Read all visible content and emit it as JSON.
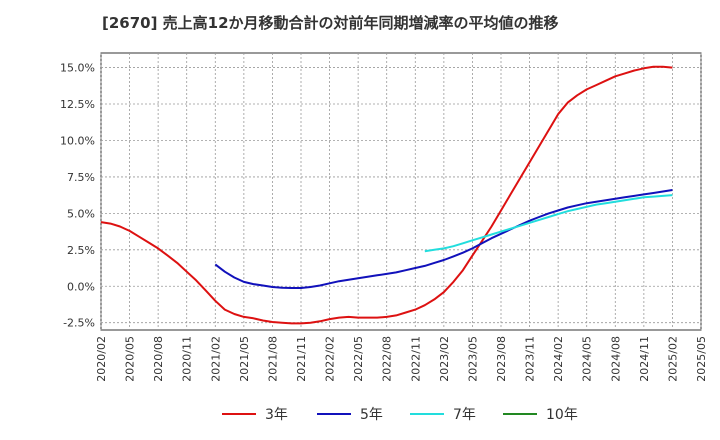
{
  "chart_data": {
    "type": "line",
    "title": "[2670]  売上高12か月移動合計の対前年同期増減率の平均値の推移",
    "xlabel": "",
    "ylabel": "",
    "ylim": [
      -3.0,
      16.0
    ],
    "y_ticks": [
      "15.0%",
      "12.5%",
      "10.0%",
      "7.5%",
      "5.0%",
      "2.5%",
      "0.0%",
      "-2.5%"
    ],
    "y_tick_values": [
      15.0,
      12.5,
      10.0,
      7.5,
      5.0,
      2.5,
      0.0,
      -2.5
    ],
    "x_ticks": [
      "2020/02",
      "2020/05",
      "2020/08",
      "2020/11",
      "2021/02",
      "2021/05",
      "2021/08",
      "2021/11",
      "2022/02",
      "2022/05",
      "2022/08",
      "2022/11",
      "2023/02",
      "2023/05",
      "2023/08",
      "2023/11",
      "2024/02",
      "2024/05",
      "2024/08",
      "2024/11",
      "2025/02",
      "2025/05"
    ],
    "grid": true,
    "legend_position": "bottom",
    "series": [
      {
        "name": "3年",
        "color": "#dd1111",
        "points": [
          [
            "2020/02",
            4.4
          ],
          [
            "2020/03",
            4.3
          ],
          [
            "2020/04",
            4.1
          ],
          [
            "2020/05",
            3.8
          ],
          [
            "2020/06",
            3.4
          ],
          [
            "2020/07",
            3.0
          ],
          [
            "2020/08",
            2.6
          ],
          [
            "2020/09",
            2.1
          ],
          [
            "2020/10",
            1.6
          ],
          [
            "2020/11",
            1.0
          ],
          [
            "2020/12",
            0.4
          ],
          [
            "2021/01",
            -0.3
          ],
          [
            "2021/02",
            -1.0
          ],
          [
            "2021/03",
            -1.6
          ],
          [
            "2021/04",
            -1.9
          ],
          [
            "2021/05",
            -2.1
          ],
          [
            "2021/06",
            -2.2
          ],
          [
            "2021/07",
            -2.35
          ],
          [
            "2021/08",
            -2.45
          ],
          [
            "2021/09",
            -2.5
          ],
          [
            "2021/10",
            -2.55
          ],
          [
            "2021/11",
            -2.55
          ],
          [
            "2021/12",
            -2.5
          ],
          [
            "2022/01",
            -2.4
          ],
          [
            "2022/02",
            -2.25
          ],
          [
            "2022/03",
            -2.15
          ],
          [
            "2022/04",
            -2.1
          ],
          [
            "2022/05",
            -2.15
          ],
          [
            "2022/06",
            -2.15
          ],
          [
            "2022/07",
            -2.15
          ],
          [
            "2022/08",
            -2.1
          ],
          [
            "2022/09",
            -2.0
          ],
          [
            "2022/10",
            -1.8
          ],
          [
            "2022/11",
            -1.6
          ],
          [
            "2022/12",
            -1.3
          ],
          [
            "2023/01",
            -0.9
          ],
          [
            "2023/02",
            -0.4
          ],
          [
            "2023/03",
            0.3
          ],
          [
            "2023/04",
            1.1
          ],
          [
            "2023/05",
            2.1
          ],
          [
            "2023/06",
            3.1
          ],
          [
            "2023/07",
            4.1
          ],
          [
            "2023/08",
            5.2
          ],
          [
            "2023/09",
            6.3
          ],
          [
            "2023/10",
            7.4
          ],
          [
            "2023/11",
            8.5
          ],
          [
            "2023/12",
            9.6
          ],
          [
            "2024/01",
            10.7
          ],
          [
            "2024/02",
            11.8
          ],
          [
            "2024/03",
            12.6
          ],
          [
            "2024/04",
            13.1
          ],
          [
            "2024/05",
            13.5
          ],
          [
            "2024/06",
            13.8
          ],
          [
            "2024/07",
            14.1
          ],
          [
            "2024/08",
            14.4
          ],
          [
            "2024/09",
            14.6
          ],
          [
            "2024/10",
            14.8
          ],
          [
            "2024/11",
            14.95
          ],
          [
            "2024/12",
            15.05
          ],
          [
            "2025/01",
            15.05
          ],
          [
            "2025/02",
            15.0
          ]
        ]
      },
      {
        "name": "5年",
        "color": "#1111bb",
        "points": [
          [
            "2021/02",
            1.5
          ],
          [
            "2021/03",
            1.0
          ],
          [
            "2021/04",
            0.6
          ],
          [
            "2021/05",
            0.3
          ],
          [
            "2021/06",
            0.15
          ],
          [
            "2021/07",
            0.05
          ],
          [
            "2021/08",
            -0.05
          ],
          [
            "2021/09",
            -0.1
          ],
          [
            "2021/10",
            -0.12
          ],
          [
            "2021/11",
            -0.12
          ],
          [
            "2021/12",
            -0.05
          ],
          [
            "2022/01",
            0.05
          ],
          [
            "2022/02",
            0.2
          ],
          [
            "2022/03",
            0.35
          ],
          [
            "2022/04",
            0.45
          ],
          [
            "2022/05",
            0.55
          ],
          [
            "2022/06",
            0.65
          ],
          [
            "2022/07",
            0.75
          ],
          [
            "2022/08",
            0.85
          ],
          [
            "2022/09",
            0.95
          ],
          [
            "2022/10",
            1.1
          ],
          [
            "2022/11",
            1.25
          ],
          [
            "2022/12",
            1.4
          ],
          [
            "2023/01",
            1.6
          ],
          [
            "2023/02",
            1.8
          ],
          [
            "2023/03",
            2.05
          ],
          [
            "2023/04",
            2.3
          ],
          [
            "2023/05",
            2.6
          ],
          [
            "2023/06",
            2.95
          ],
          [
            "2023/07",
            3.3
          ],
          [
            "2023/08",
            3.6
          ],
          [
            "2023/09",
            3.9
          ],
          [
            "2023/10",
            4.2
          ],
          [
            "2023/11",
            4.5
          ],
          [
            "2023/12",
            4.75
          ],
          [
            "2024/01",
            5.0
          ],
          [
            "2024/02",
            5.2
          ],
          [
            "2024/03",
            5.4
          ],
          [
            "2024/04",
            5.55
          ],
          [
            "2024/05",
            5.7
          ],
          [
            "2024/06",
            5.8
          ],
          [
            "2024/07",
            5.9
          ],
          [
            "2024/08",
            6.0
          ],
          [
            "2024/09",
            6.1
          ],
          [
            "2024/10",
            6.2
          ],
          [
            "2024/11",
            6.3
          ],
          [
            "2024/12",
            6.4
          ],
          [
            "2025/01",
            6.5
          ],
          [
            "2025/02",
            6.6
          ]
        ]
      },
      {
        "name": "7年",
        "color": "#22dddd",
        "points": [
          [
            "2022/12",
            2.4
          ],
          [
            "2023/01",
            2.5
          ],
          [
            "2023/02",
            2.6
          ],
          [
            "2023/03",
            2.75
          ],
          [
            "2023/04",
            2.95
          ],
          [
            "2023/05",
            3.15
          ],
          [
            "2023/06",
            3.35
          ],
          [
            "2023/07",
            3.55
          ],
          [
            "2023/08",
            3.75
          ],
          [
            "2023/09",
            3.95
          ],
          [
            "2023/10",
            4.15
          ],
          [
            "2023/11",
            4.35
          ],
          [
            "2023/12",
            4.55
          ],
          [
            "2024/01",
            4.75
          ],
          [
            "2024/02",
            4.95
          ],
          [
            "2024/03",
            5.15
          ],
          [
            "2024/04",
            5.3
          ],
          [
            "2024/05",
            5.45
          ],
          [
            "2024/06",
            5.6
          ],
          [
            "2024/07",
            5.7
          ],
          [
            "2024/08",
            5.8
          ],
          [
            "2024/09",
            5.9
          ],
          [
            "2024/10",
            6.0
          ],
          [
            "2024/11",
            6.1
          ],
          [
            "2024/12",
            6.15
          ],
          [
            "2025/01",
            6.2
          ],
          [
            "2025/02",
            6.25
          ]
        ]
      },
      {
        "name": "10年",
        "color": "#228822",
        "points": []
      }
    ]
  }
}
